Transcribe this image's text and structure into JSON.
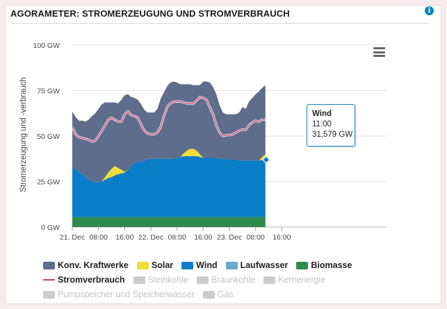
{
  "header": {
    "title": "AGORAMETER: STROMERZEUGUNG UND STROMVERBRAUCH",
    "info_icon": "info-icon"
  },
  "colors": {
    "konventionell": "#5f6d8c",
    "solar": "#f2dc38",
    "wind": "#0a7dc9",
    "laufwasser": "#6aa8d0",
    "biomasse": "#2e8b4e",
    "verbrauch": "#c1406a",
    "inactive": "#cccccc"
  },
  "menu_icon": "hamburger-menu-icon",
  "chart_data": {
    "type": "area",
    "title": "",
    "ylabel": "Stromerzeugung und -verbrauch",
    "xlabel": "",
    "ylim": [
      0,
      100
    ],
    "y_ticks": [
      "0 GW",
      "25 GW",
      "50 GW",
      "75 GW",
      "100 GW"
    ],
    "y_tick_values": [
      0,
      25,
      50,
      75,
      100
    ],
    "x_range_hours": [
      0,
      96
    ],
    "x_ticks": [
      "21. Dec",
      "08:00",
      "16:00",
      "22. Dec",
      "08:00",
      "16:00",
      "23. Dec",
      "08:00",
      "16:00"
    ],
    "x_tick_hours": [
      0,
      8,
      16,
      24,
      32,
      40,
      48,
      56,
      64
    ],
    "grid": true,
    "stacking": "normal",
    "x_hours": [
      0,
      1,
      2,
      3,
      4,
      5,
      6,
      7,
      8,
      9,
      10,
      11,
      12,
      13,
      14,
      15,
      16,
      17,
      18,
      19,
      20,
      21,
      22,
      23,
      24,
      25,
      26,
      27,
      28,
      29,
      30,
      31,
      32,
      33,
      34,
      35,
      36,
      37,
      38,
      39,
      40,
      41,
      42,
      43,
      44,
      45,
      46,
      47,
      48,
      49,
      50,
      51,
      52,
      53,
      54,
      55,
      56,
      57,
      58,
      59
    ],
    "series": [
      {
        "name": "Biomasse",
        "values": [
          5.5,
          5.5,
          5.5,
          5.5,
          5.5,
          5.5,
          5.5,
          5.5,
          5.5,
          5.5,
          5.5,
          5.5,
          5.5,
          5.5,
          5.5,
          5.5,
          5.5,
          5.5,
          5.5,
          5.5,
          5.5,
          5.5,
          5.5,
          5.5,
          5.5,
          5.5,
          5.5,
          5.5,
          5.5,
          5.5,
          5.5,
          5.5,
          5.5,
          5.5,
          5.5,
          5.5,
          5.5,
          5.5,
          5.5,
          5.5,
          5.5,
          5.5,
          5.5,
          5.5,
          5.5,
          5.5,
          5.5,
          5.5,
          5.5,
          5.5,
          5.5,
          5.5,
          5.5,
          5.5,
          5.5,
          5.5,
          5.5,
          5.5,
          5.5,
          5.5
        ]
      },
      {
        "name": "Wind",
        "values": [
          27.5,
          26.5,
          25,
          23.5,
          22,
          20.5,
          19.5,
          19,
          19,
          19.5,
          20.5,
          21.5,
          22,
          23,
          23.5,
          24,
          24.5,
          26,
          28,
          29.5,
          30.5,
          30.5,
          31,
          32,
          32,
          32,
          32,
          32,
          32,
          32,
          32,
          32,
          32.5,
          33,
          33.5,
          33.5,
          33.5,
          33.5,
          33.5,
          33,
          32.5,
          32.5,
          32.5,
          32.5,
          32.5,
          32,
          32,
          31.5,
          31.5,
          31.5,
          31.5,
          31,
          31,
          31,
          31,
          31,
          31,
          31,
          31.5,
          31.5
        ]
      },
      {
        "name": "Solar",
        "values": [
          0,
          0,
          0,
          0,
          0,
          0,
          0,
          0,
          0,
          0,
          1.5,
          3,
          4.5,
          5,
          3.5,
          2,
          0.5,
          0,
          0,
          0,
          0,
          0,
          0,
          0,
          0,
          0,
          0,
          0,
          0,
          0,
          0,
          0,
          0,
          0,
          1.5,
          3,
          4,
          4,
          3,
          1.5,
          0,
          0,
          0,
          0,
          0,
          0,
          0,
          0,
          0,
          0,
          0,
          0,
          0,
          0,
          0,
          0,
          0,
          0,
          1.5,
          3
        ]
      },
      {
        "name": "Laufwasser",
        "values": [
          0,
          0,
          0,
          0,
          0,
          0,
          0,
          0,
          0,
          0,
          0,
          0,
          0,
          0,
          0,
          0,
          0,
          0,
          0,
          0,
          0,
          0,
          0,
          0,
          0,
          0,
          0,
          0,
          0,
          0,
          0,
          0,
          0,
          0,
          0,
          0,
          0,
          0,
          0,
          0,
          0,
          0,
          0,
          0,
          0,
          0,
          0,
          0,
          0,
          0,
          0,
          0,
          0,
          0,
          0,
          0,
          0,
          0,
          0,
          0
        ]
      },
      {
        "name": "Konv. Kraftwerke",
        "values": [
          30.5,
          28.5,
          28,
          29.5,
          30.5,
          33,
          36,
          38,
          40.5,
          42.5,
          41,
          38.5,
          36.5,
          35,
          35.5,
          38.5,
          42,
          41.5,
          38,
          36,
          34,
          31.5,
          28,
          25.5,
          25.5,
          25.5,
          27.5,
          33,
          36.5,
          40,
          42,
          42.5,
          41.5,
          40,
          38,
          36.5,
          35.5,
          35,
          36,
          38,
          42,
          42,
          41.5,
          39,
          35,
          29.5,
          25.5,
          25,
          25,
          25,
          25,
          26.5,
          29.5,
          28.5,
          32.5,
          34.5,
          36.5,
          38,
          38,
          38
        ]
      }
    ],
    "consumption": {
      "name": "Stromverbrauch",
      "values": [
        55,
        51,
        49.5,
        49,
        48.5,
        48,
        47,
        47.5,
        50,
        53,
        56,
        59,
        60,
        59,
        58,
        58,
        62,
        63.5,
        61.5,
        61,
        60,
        56.5,
        53,
        51.5,
        51,
        51,
        52,
        55,
        61,
        66,
        68,
        69,
        69,
        69,
        68.5,
        68,
        68,
        68,
        69.5,
        71.5,
        71,
        70,
        66,
        62,
        56,
        52,
        50,
        50.5,
        50.5,
        51,
        52,
        53,
        53.5,
        53.5,
        56,
        57.5,
        58.5,
        58,
        59,
        59
      ]
    },
    "tooltip": {
      "series": "Wind",
      "time": "11:00",
      "value": "31,579 GW"
    }
  },
  "legend": {
    "row1": [
      {
        "label": "Konv. Kraftwerke",
        "color_key": "konventionell"
      },
      {
        "label": "Solar",
        "color_key": "solar"
      },
      {
        "label": "Wind",
        "color_key": "wind"
      },
      {
        "label": "Laufwasser",
        "color_key": "laufwasser"
      },
      {
        "label": "Biomasse",
        "color_key": "biomasse"
      }
    ],
    "row2": [
      {
        "label": "Stromverbrauch",
        "active": true
      },
      {
        "label": "Steinkohle",
        "active": false
      },
      {
        "label": "Braunkohle",
        "active": false
      },
      {
        "label": "Kernenergie",
        "active": false
      }
    ],
    "row3": [
      {
        "label": "Pumpspeicher und Speicherwasser",
        "active": false
      },
      {
        "label": "Gas",
        "active": false
      }
    ]
  }
}
